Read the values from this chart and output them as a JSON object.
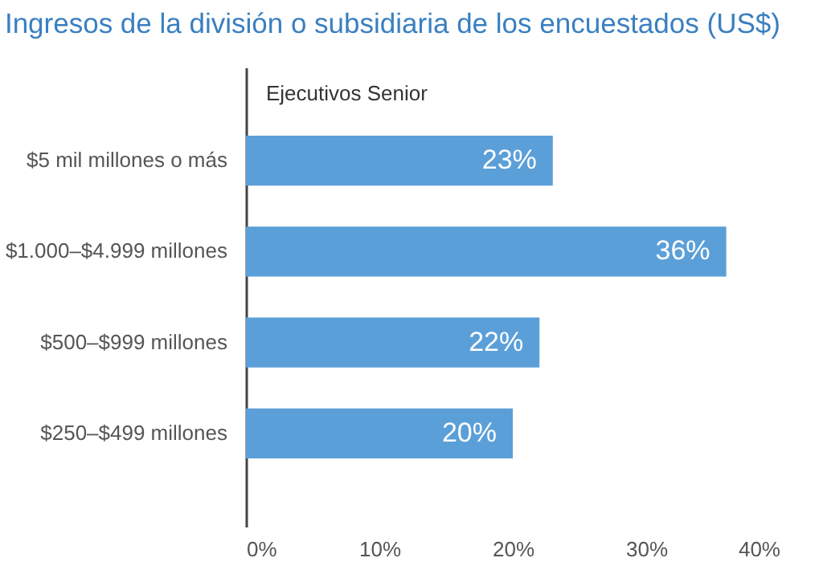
{
  "chart_data": {
    "type": "bar",
    "orientation": "horizontal",
    "title": "Ingresos de la división o subsidiaria de los encuestados (US$)",
    "subtitle": "Ejecutivos Senior",
    "categories": [
      "$5 mil millones o más",
      "$1.000–$4.999 millones",
      "$500–$999 millones",
      "$250–$499 millones"
    ],
    "values": [
      23,
      36,
      22,
      20
    ],
    "value_labels": [
      "23%",
      "36%",
      "22%",
      "20%"
    ],
    "color": "#5b9fd8",
    "xlim": [
      0,
      40
    ],
    "xticks": [
      {
        "value": 0,
        "label": "0%"
      },
      {
        "value": 10,
        "label": "10%"
      },
      {
        "value": 20,
        "label": "20%"
      },
      {
        "value": 30,
        "label": "30%"
      },
      {
        "value": 40,
        "label": "40%"
      }
    ],
    "grid": false
  }
}
